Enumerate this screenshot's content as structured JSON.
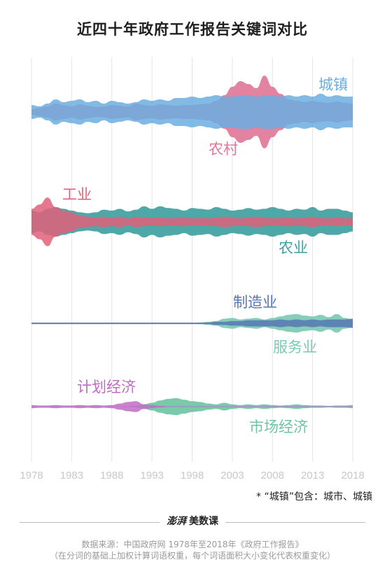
{
  "title": "近四十年政府工作报告关键词对比",
  "note": "* “城镇”包含：城市、城镇",
  "brand": {
    "left": "澎湃",
    "right": "美数课"
  },
  "source_line1": "数据来源：中国政府网 1978年至2018年《政府工作报告》",
  "source_line2": "（在分词的基础上加权计算词语权重，每个词语面积大小变化代表权重变化）",
  "chart_data": {
    "type": "area",
    "x_ticks": [
      "1978",
      "1983",
      "1988",
      "1993",
      "1998",
      "2003",
      "2008",
      "2013",
      "2018"
    ],
    "x": [
      1978,
      1979,
      1980,
      1981,
      1982,
      1983,
      1984,
      1985,
      1986,
      1987,
      1988,
      1989,
      1990,
      1991,
      1992,
      1993,
      1994,
      1995,
      1996,
      1997,
      1998,
      1999,
      2000,
      2001,
      2002,
      2003,
      2004,
      2005,
      2006,
      2007,
      2008,
      2009,
      2010,
      2011,
      2012,
      2013,
      2014,
      2015,
      2016,
      2017,
      2018
    ],
    "grid": true,
    "groups": [
      {
        "series": [
          {
            "name": "农村",
            "color": "#e0789a",
            "values": [
              4,
              6,
              8,
              12,
              10,
              8,
              11,
              9,
              7,
              8,
              10,
              9,
              8,
              12,
              10,
              9,
              11,
              10,
              9,
              10,
              10,
              11,
              12,
              16,
              24,
              36,
              44,
              40,
              34,
              52,
              36,
              26,
              18,
              16,
              14,
              16,
              14,
              13,
              15,
              13,
              12
            ]
          },
          {
            "name": "城镇",
            "color": "#6aaee0",
            "values": [
              10,
              8,
              12,
              18,
              14,
              16,
              18,
              14,
              16,
              12,
              16,
              14,
              12,
              14,
              18,
              16,
              18,
              16,
              20,
              20,
              22,
              20,
              22,
              24,
              22,
              22,
              24,
              24,
              22,
              24,
              24,
              22,
              24,
              22,
              24,
              22,
              26,
              22,
              24,
              22,
              22
            ]
          }
        ]
      },
      {
        "series": [
          {
            "name": "农业",
            "color": "#3fa1a0",
            "values": [
              26,
              22,
              30,
              34,
              30,
              26,
              22,
              20,
              22,
              28,
              26,
              30,
              24,
              28,
              36,
              30,
              36,
              32,
              30,
              26,
              32,
              30,
              28,
              34,
              30,
              26,
              28,
              32,
              28,
              30,
              34,
              30,
              26,
              30,
              28,
              34,
              26,
              30,
              30,
              26,
              22
            ]
          },
          {
            "name": "工业",
            "color": "#e0607a",
            "values": [
              30,
              40,
              56,
              34,
              26,
              22,
              14,
              12,
              10,
              12,
              10,
              12,
              8,
              12,
              10,
              9,
              10,
              8,
              9,
              10,
              8,
              9,
              8,
              10,
              12,
              10,
              8,
              10,
              12,
              10,
              8,
              9,
              10,
              8,
              10,
              12,
              9,
              8,
              10,
              8,
              9
            ]
          }
        ]
      },
      {
        "series": [
          {
            "name": "服务业",
            "color": "#7cc9b4",
            "values": [
              1,
              1,
              1,
              1,
              1,
              1,
              1,
              1,
              1,
              1,
              1,
              1,
              1,
              1,
              1,
              1,
              1,
              1,
              1,
              1,
              1,
              2,
              4,
              6,
              12,
              14,
              10,
              12,
              14,
              10,
              14,
              18,
              22,
              24,
              20,
              18,
              22,
              16,
              24,
              14,
              10
            ]
          },
          {
            "name": "制造业",
            "color": "#5677b4",
            "values": [
              2,
              2,
              2,
              2,
              2,
              2,
              2,
              2,
              2,
              2,
              2,
              2,
              2,
              2,
              2,
              2,
              2,
              2,
              2,
              2,
              2,
              2,
              2,
              4,
              4,
              6,
              6,
              8,
              8,
              8,
              8,
              10,
              8,
              10,
              8,
              10,
              8,
              10,
              10,
              10,
              12
            ]
          }
        ]
      },
      {
        "series": [
          {
            "name": "市场经济",
            "color": "#6cc5a4",
            "values": [
              1,
              1,
              1,
              1,
              1,
              1,
              1,
              1,
              1,
              1,
              1,
              1,
              1,
              2,
              6,
              10,
              16,
              20,
              22,
              18,
              14,
              12,
              8,
              6,
              10,
              6,
              4,
              6,
              4,
              6,
              4,
              3,
              4,
              6,
              4,
              3,
              3,
              2,
              3,
              3,
              4
            ]
          },
          {
            "name": "计划经济",
            "color": "#c26bc4",
            "values": [
              4,
              3,
              3,
              4,
              3,
              3,
              4,
              3,
              4,
              3,
              4,
              8,
              12,
              14,
              6,
              4,
              2,
              1,
              1,
              1,
              1,
              1,
              1,
              1,
              1,
              1,
              1,
              1,
              1,
              1,
              1,
              1,
              1,
              1,
              1,
              1,
              1,
              1,
              1,
              1,
              1
            ]
          }
        ]
      }
    ]
  }
}
